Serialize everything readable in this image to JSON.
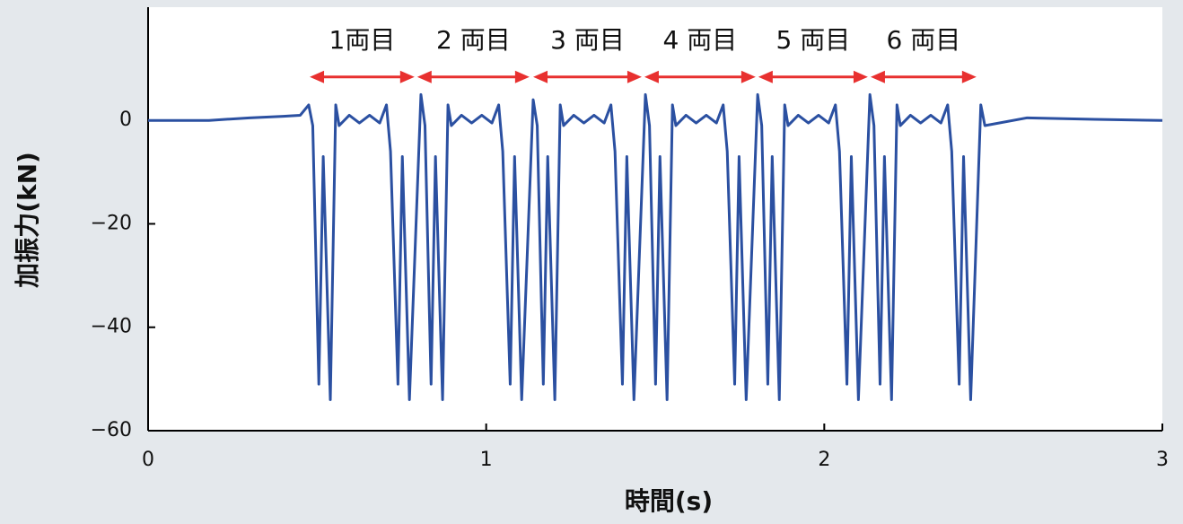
{
  "chart_data": {
    "type": "line",
    "xlabel": "時間(s)",
    "ylabel": "加振力(kN)",
    "xlim": [
      0,
      3
    ],
    "ylim": [
      -60,
      21.9
    ],
    "xticks": [
      0,
      1,
      2,
      3
    ],
    "yticks": [
      {
        "value": -60,
        "label": "−60"
      },
      {
        "value": -40,
        "label": "−40"
      },
      {
        "value": -20,
        "label": "−20"
      },
      0
    ],
    "x": [
      0,
      0.18,
      0.3,
      0.4,
      0.45,
      0.475,
      0.487,
      0.505,
      0.518,
      0.539,
      0.555,
      0.565,
      0.595,
      0.625,
      0.655,
      0.685,
      0.705,
      0.717,
      0.739,
      0.752,
      0.773,
      0.807,
      0.819,
      0.837,
      0.85,
      0.871,
      0.887,
      0.897,
      0.927,
      0.957,
      0.987,
      1.017,
      1.037,
      1.049,
      1.071,
      1.084,
      1.105,
      1.139,
      1.151,
      1.169,
      1.182,
      1.203,
      1.219,
      1.229,
      1.259,
      1.289,
      1.319,
      1.349,
      1.369,
      1.381,
      1.403,
      1.416,
      1.437,
      1.471,
      1.483,
      1.501,
      1.514,
      1.535,
      1.551,
      1.561,
      1.591,
      1.621,
      1.651,
      1.681,
      1.701,
      1.713,
      1.735,
      1.748,
      1.769,
      1.803,
      1.815,
      1.833,
      1.846,
      1.867,
      1.883,
      1.893,
      1.923,
      1.953,
      1.983,
      2.013,
      2.033,
      2.045,
      2.067,
      2.08,
      2.101,
      2.135,
      2.147,
      2.165,
      2.178,
      2.199,
      2.215,
      2.225,
      2.255,
      2.285,
      2.315,
      2.345,
      2.365,
      2.377,
      2.399,
      2.412,
      2.433,
      2.463,
      2.475,
      2.6,
      2.8,
      3
    ],
    "series": [
      {
        "name": "加振力",
        "color": "#2b50a1",
        "values": [
          0,
          0,
          0.5,
          0.8,
          1,
          3,
          -1,
          -51,
          -7,
          -54,
          3,
          -1,
          1,
          -0.5,
          1,
          -0.5,
          3,
          -6,
          -51,
          -7,
          -54,
          5,
          -1,
          -51,
          -7,
          -54,
          3,
          -1,
          1,
          -0.5,
          1,
          -0.5,
          3,
          -6,
          -51,
          -7,
          -54,
          4,
          -1,
          -51,
          -7,
          -54,
          3,
          -1,
          1,
          -0.5,
          1,
          -0.5,
          3,
          -6,
          -51,
          -7,
          -54,
          5,
          -1,
          -51,
          -7,
          -54,
          3,
          -1,
          1,
          -0.5,
          1,
          -0.5,
          3,
          -6,
          -51,
          -7,
          -54,
          5,
          -1,
          -51,
          -7,
          -54,
          3,
          -1,
          1,
          -0.5,
          1,
          -0.5,
          3,
          -6,
          -51,
          -7,
          -54,
          5,
          -1,
          -51,
          -7,
          -54,
          3,
          -1,
          1,
          -0.5,
          1,
          -0.5,
          3,
          -6,
          -51,
          -7,
          -54,
          3,
          -1,
          0.5,
          0.2,
          0
        ]
      }
    ],
    "annotations": [
      {
        "text": "1両目",
        "start": 0.478,
        "end": 0.788,
        "y": 8.4,
        "label_y": 15.3,
        "color": "#e8302f"
      },
      {
        "text": "2 両目",
        "start": 0.796,
        "end": 1.128,
        "y": 8.4,
        "label_y": 15.3,
        "color": "#e8302f"
      },
      {
        "text": "3 両目",
        "start": 1.139,
        "end": 1.46,
        "y": 8.4,
        "label_y": 15.3,
        "color": "#e8302f"
      },
      {
        "text": "4 両目",
        "start": 1.468,
        "end": 1.797,
        "y": 8.4,
        "label_y": 15.3,
        "color": "#e8302f"
      },
      {
        "text": "5 両目",
        "start": 1.805,
        "end": 2.129,
        "y": 8.4,
        "label_y": 15.3,
        "color": "#e8302f"
      },
      {
        "text": "6 両目",
        "start": 2.137,
        "end": 2.45,
        "y": 8.4,
        "label_y": 15.3,
        "color": "#e8302f"
      }
    ]
  }
}
